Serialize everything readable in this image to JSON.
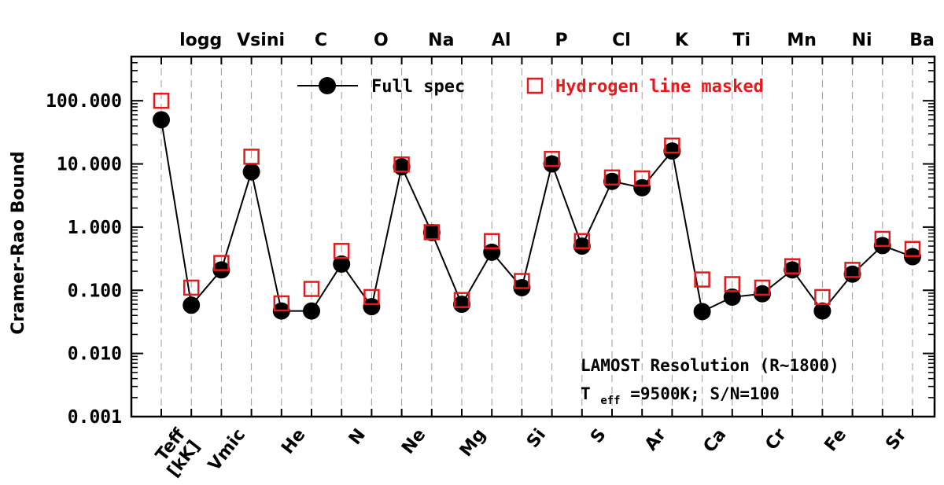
{
  "chart_data": {
    "type": "line",
    "ylabel": "Cramer-Rao Bound",
    "yscale": "log",
    "ylim": [
      0.001,
      500
    ],
    "yticks": [
      "0.001",
      "0.010",
      "0.100",
      "1.000",
      "10.000",
      "100.000"
    ],
    "bottom_labels": [
      "Teff\n[kK]",
      "Vmic",
      "He",
      "N",
      "Ne",
      "Mg",
      "Si",
      "S",
      "Ar",
      "Ca",
      "Cr",
      "Fe",
      "Sr"
    ],
    "top_labels": [
      "logg",
      "Vsini",
      "C",
      "O",
      "Na",
      "Al",
      "P",
      "Cl",
      "K",
      "Ti",
      "Mn",
      "Ni",
      "Ba"
    ],
    "categories": [
      "Teff [kK]",
      "logg",
      "Vmic",
      "Vsini",
      "He",
      "C",
      "N",
      "O",
      "Ne",
      "Na",
      "Mg",
      "Al",
      "Si",
      "P",
      "S",
      "Cl",
      "Ar",
      "K",
      "Ca",
      "Ti",
      "Cr",
      "Mn",
      "Fe",
      "Ni",
      "Sr",
      "Ba"
    ],
    "series": [
      {
        "name": "Full spec",
        "marker": "filled-circle",
        "color": "#000000",
        "values": [
          50,
          0.058,
          0.21,
          7.5,
          0.047,
          0.047,
          0.26,
          0.055,
          9.0,
          0.82,
          0.06,
          0.4,
          0.11,
          10.0,
          0.5,
          5.3,
          4.2,
          16.0,
          0.046,
          0.078,
          0.088,
          0.21,
          0.047,
          0.18,
          0.51,
          0.34
        ]
      },
      {
        "name": "Hydrogen line masked",
        "marker": "open-square",
        "color": "#e8191c",
        "values": [
          100,
          0.11,
          0.27,
          13.0,
          0.062,
          0.105,
          0.42,
          0.078,
          9.8,
          0.83,
          0.07,
          0.6,
          0.14,
          12.0,
          0.6,
          6.1,
          5.9,
          19.5,
          0.148,
          0.125,
          0.11,
          0.24,
          0.078,
          0.21,
          0.65,
          0.45
        ]
      }
    ],
    "annotation": {
      "line1": "LAMOST Resolution (R~1800)",
      "line2_prefix": "T",
      "line2_sub": "eff",
      "line2_rest": "=9500K; S/N=100"
    },
    "legend_placement": "top-center",
    "vertical_gridlines": true
  }
}
